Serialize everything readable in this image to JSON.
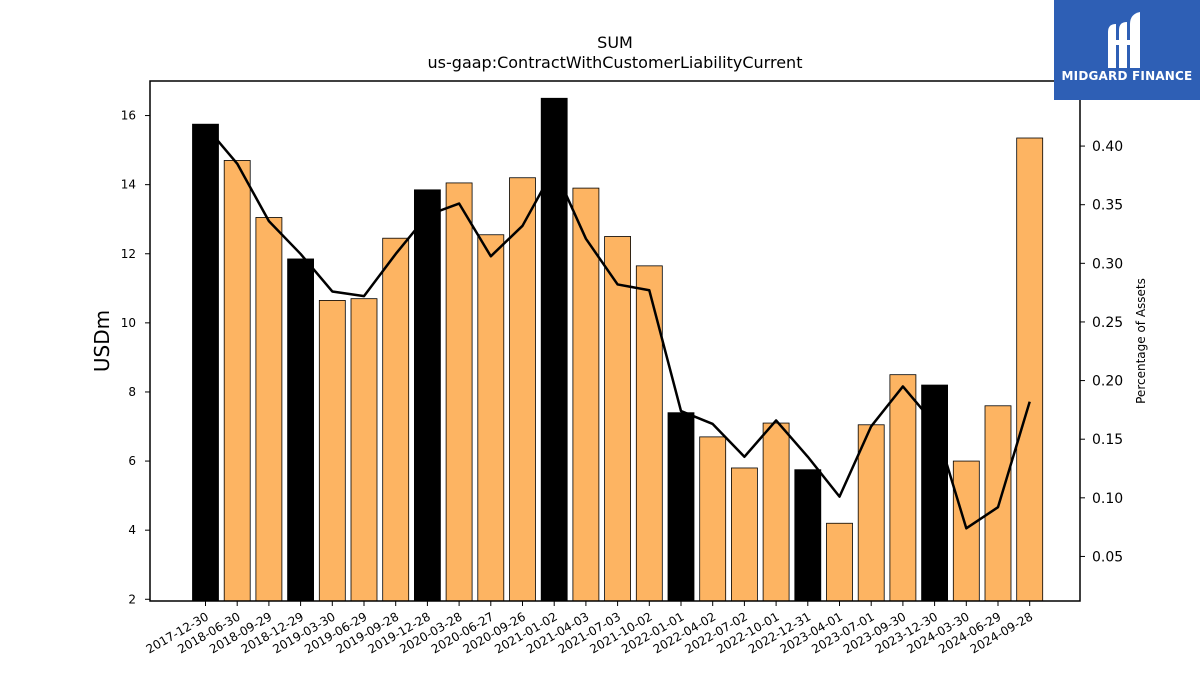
{
  "chart_data": {
    "type": "bar",
    "title": "SUM",
    "subtitle": "us-gaap:ContractWithCustomerLiabilityCurrent",
    "ylabel": "USDm",
    "y2label": "Percentage of Assets",
    "ylim": [
      1.95,
      17.0
    ],
    "y2lim": [
      0.012,
      0.4555
    ],
    "yticks": [
      2,
      4,
      6,
      8,
      10,
      12,
      14,
      16
    ],
    "y2ticks": [
      "0.05",
      "0.10",
      "0.15",
      "0.20",
      "0.25",
      "0.30",
      "0.35",
      "0.40"
    ],
    "categories": [
      "2017-12-30",
      "2018-06-30",
      "2018-09-29",
      "2018-12-29",
      "2019-03-30",
      "2019-06-29",
      "2019-09-28",
      "2019-12-28",
      "2020-03-28",
      "2020-06-27",
      "2020-09-26",
      "2021-01-02",
      "2021-04-03",
      "2021-07-03",
      "2021-10-02",
      "2022-01-01",
      "2022-04-02",
      "2022-07-02",
      "2022-10-01",
      "2022-12-31",
      "2023-04-01",
      "2023-07-01",
      "2023-09-30",
      "2023-12-30",
      "2024-03-30",
      "2024-06-29",
      "2024-09-28"
    ],
    "series": [
      {
        "type": "bar",
        "values": [
          15.75,
          14.7,
          13.05,
          11.85,
          10.65,
          10.7,
          12.45,
          13.85,
          14.05,
          12.55,
          14.2,
          16.5,
          13.9,
          12.5,
          11.65,
          7.4,
          6.7,
          5.8,
          7.1,
          5.75,
          4.2,
          7.05,
          8.5,
          8.2,
          6.0,
          7.6,
          15.35
        ],
        "highlight": [
          true,
          false,
          false,
          true,
          false,
          false,
          false,
          true,
          false,
          false,
          false,
          true,
          false,
          false,
          false,
          true,
          false,
          false,
          false,
          true,
          false,
          false,
          false,
          true,
          false,
          false,
          false
        ]
      },
      {
        "type": "line",
        "axis": "right",
        "values": [
          0.417,
          0.385,
          0.336,
          0.308,
          0.276,
          0.272,
          0.308,
          0.341,
          0.351,
          0.306,
          0.332,
          0.381,
          0.321,
          0.282,
          0.277,
          0.174,
          0.163,
          0.135,
          0.166,
          0.135,
          0.101,
          0.161,
          0.195,
          0.163,
          0.074,
          0.092,
          0.182
        ]
      }
    ],
    "colors": {
      "bar": "#fdb462",
      "bar_highlight": "#000000",
      "line": "#000000"
    },
    "grid": false,
    "legend": "none"
  },
  "logo": {
    "text": "MIDGARD FINANCE"
  }
}
